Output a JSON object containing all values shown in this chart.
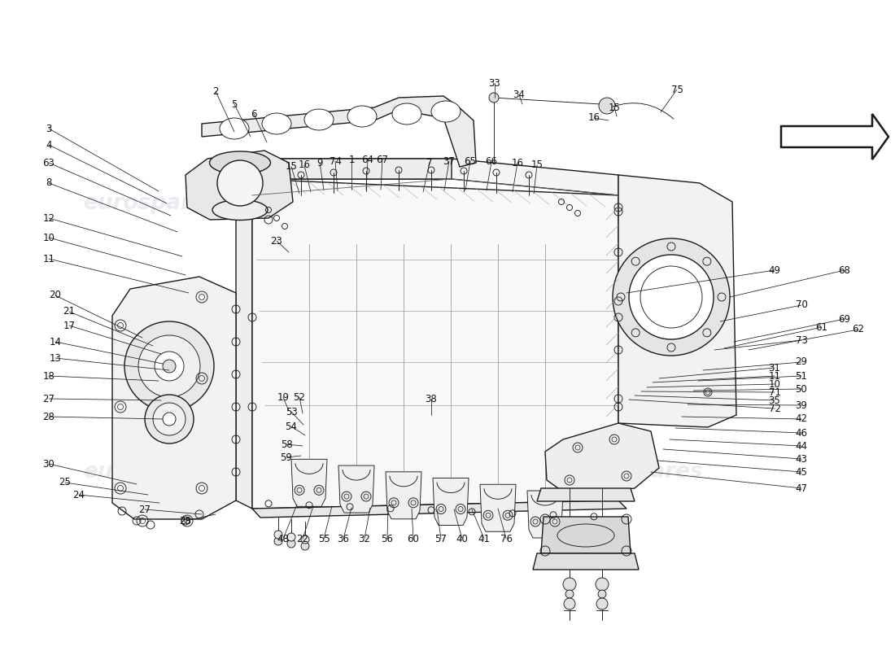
{
  "bg_color": "#ffffff",
  "line_color": "#1a1a1a",
  "label_color": "#111111",
  "watermark_color": "#c8d4dc",
  "watermark_alpha": 0.4,
  "watermark_text": "eurospares",
  "label_fontsize": 8.5,
  "figsize": [
    11.0,
    8.0
  ],
  "dpi": 100,
  "lw_thin": 0.65,
  "lw_med": 1.0,
  "lw_thick": 1.8
}
